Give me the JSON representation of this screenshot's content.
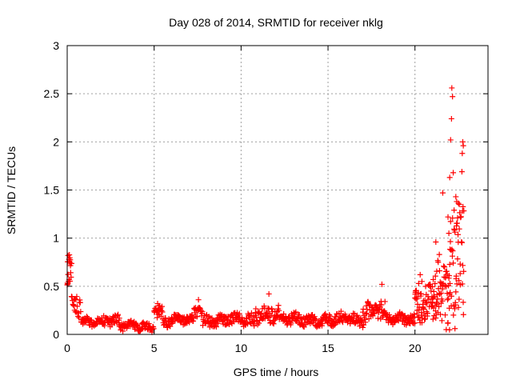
{
  "chart_data": {
    "type": "scatter",
    "title": "Day 028 of 2014, SRMTID for receiver nklg",
    "xlabel": "GPS time / hours",
    "ylabel": "SRMTID / TECUs",
    "xlim": [
      0,
      24.2
    ],
    "ylim": [
      0,
      3
    ],
    "x_ticks": [
      0,
      5,
      10,
      15,
      20
    ],
    "y_ticks": [
      0,
      0.5,
      1,
      1.5,
      2,
      2.5,
      3
    ],
    "x_tick_labels": [
      "0",
      "5",
      "10",
      "15",
      "20"
    ],
    "y_tick_labels": [
      "0",
      "0.5",
      "1",
      "1.5",
      "2",
      "2.5",
      "3"
    ],
    "grid": true,
    "marker": "+",
    "series": [
      {
        "name": "SRMTID",
        "color": "#ff0000",
        "segments": [
          {
            "x_start": 0.0,
            "x_end": 0.25,
            "base": 0.65,
            "spread": 0.17
          },
          {
            "x_start": 0.25,
            "x_end": 0.8,
            "base": 0.3,
            "spread": 0.15
          },
          {
            "x_start": 0.8,
            "x_end": 2.0,
            "base": 0.13,
            "spread": 0.05
          },
          {
            "x_start": 2.0,
            "x_end": 3.0,
            "base": 0.15,
            "spread": 0.06
          },
          {
            "x_start": 3.0,
            "x_end": 5.0,
            "base": 0.08,
            "spread": 0.05
          },
          {
            "x_start": 5.0,
            "x_end": 5.5,
            "base": 0.24,
            "spread": 0.08
          },
          {
            "x_start": 5.5,
            "x_end": 7.3,
            "base": 0.14,
            "spread": 0.06
          },
          {
            "x_start": 7.3,
            "x_end": 7.8,
            "base": 0.26,
            "spread": 0.08
          },
          {
            "x_start": 7.8,
            "x_end": 10.8,
            "base": 0.15,
            "spread": 0.07
          },
          {
            "x_start": 10.8,
            "x_end": 12.2,
            "base": 0.22,
            "spread": 0.1
          },
          {
            "x_start": 12.2,
            "x_end": 17.0,
            "base": 0.15,
            "spread": 0.07
          },
          {
            "x_start": 17.0,
            "x_end": 18.3,
            "base": 0.25,
            "spread": 0.12
          },
          {
            "x_start": 18.3,
            "x_end": 20.0,
            "base": 0.16,
            "spread": 0.07
          },
          {
            "x_start": 20.0,
            "x_end": 21.0,
            "base": 0.35,
            "spread": 0.2
          },
          {
            "x_start": 21.0,
            "x_end": 21.5,
            "base": 0.45,
            "spread": 0.35
          },
          {
            "x_start": 21.5,
            "x_end": 22.0,
            "base": 0.3,
            "spread": 0.35
          },
          {
            "x_start": 22.0,
            "x_end": 22.8,
            "base": 0.8,
            "spread": 0.6
          }
        ],
        "notable_points": [
          {
            "x": 0.05,
            "y": 0.82
          },
          {
            "x": 0.1,
            "y": 0.78
          },
          {
            "x": 0.15,
            "y": 0.75
          },
          {
            "x": 5.2,
            "y": 0.32
          },
          {
            "x": 7.55,
            "y": 0.36
          },
          {
            "x": 11.6,
            "y": 0.42
          },
          {
            "x": 18.1,
            "y": 0.52
          },
          {
            "x": 20.3,
            "y": 0.62
          },
          {
            "x": 20.4,
            "y": 0.55
          },
          {
            "x": 21.2,
            "y": 0.96
          },
          {
            "x": 21.4,
            "y": 0.83
          },
          {
            "x": 21.6,
            "y": 1.47
          },
          {
            "x": 21.9,
            "y": 1.22
          },
          {
            "x": 21.95,
            "y": 1.05
          },
          {
            "x": 22.0,
            "y": 1.63
          },
          {
            "x": 22.05,
            "y": 2.02
          },
          {
            "x": 22.1,
            "y": 2.24
          },
          {
            "x": 22.12,
            "y": 2.56
          },
          {
            "x": 22.16,
            "y": 2.47
          },
          {
            "x": 22.2,
            "y": 1.68
          },
          {
            "x": 22.25,
            "y": 1.29
          },
          {
            "x": 22.35,
            "y": 1.43
          },
          {
            "x": 22.4,
            "y": 1.38
          },
          {
            "x": 22.45,
            "y": 1.21
          },
          {
            "x": 22.55,
            "y": 1.35
          },
          {
            "x": 22.6,
            "y": 0.73
          },
          {
            "x": 22.7,
            "y": 1.69
          },
          {
            "x": 22.72,
            "y": 1.88
          },
          {
            "x": 22.75,
            "y": 2.0
          },
          {
            "x": 22.78,
            "y": 1.96
          },
          {
            "x": 22.5,
            "y": 0.28
          },
          {
            "x": 22.3,
            "y": 0.06
          },
          {
            "x": 21.8,
            "y": 0.05
          }
        ]
      }
    ]
  }
}
